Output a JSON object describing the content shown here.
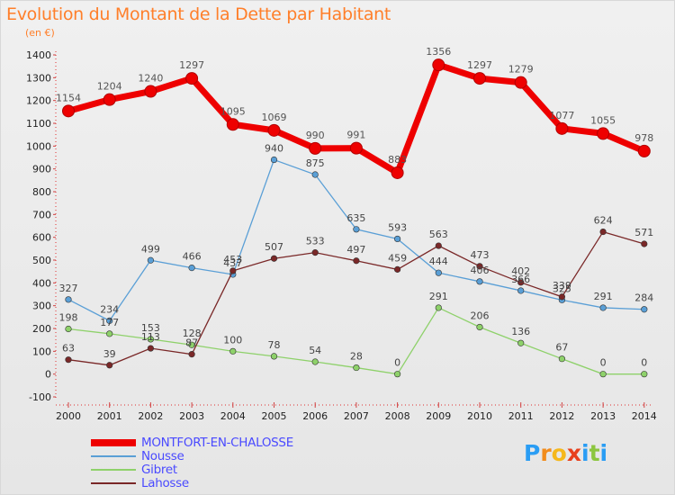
{
  "header": {
    "title": "Evolution du Montant de la Dette par Habitant",
    "subtitle": "(en €)"
  },
  "logo": {
    "letters": [
      "P",
      "r",
      "o",
      "x",
      "i",
      "t",
      "i"
    ],
    "colors": [
      "#2a9df4",
      "#f28c1c",
      "#f5b81c",
      "#e8401c",
      "#2a9df4",
      "#8cc63f",
      "#2a9df4"
    ]
  },
  "chart_data": {
    "type": "line",
    "title": "Evolution du Montant de la Dette par Habitant",
    "subtitle": "(en €)",
    "x": [
      "2000",
      "2001",
      "2002",
      "2003",
      "2004",
      "2005",
      "2006",
      "2007",
      "2008",
      "2009",
      "2010",
      "2011",
      "2012",
      "2013",
      "2014"
    ],
    "ylim": [
      -100,
      1400
    ],
    "yticks": [
      -100,
      0,
      100,
      200,
      300,
      400,
      500,
      600,
      700,
      800,
      900,
      1000,
      1100,
      1200,
      1300,
      1400
    ],
    "grid": false,
    "legend_position": "bottom-left",
    "series": [
      {
        "name": "MONTFORT-EN-CHALOSSE",
        "color": "#ee0000",
        "emphasis": true,
        "values": [
          1154,
          1204,
          1240,
          1297,
          1095,
          1069,
          990,
          991,
          883,
          1356,
          1297,
          1279,
          1077,
          1055,
          978
        ],
        "labels": [
          "1154",
          "1204",
          "1240",
          "1297",
          "1095",
          "1069",
          "990",
          "991",
          "883",
          "1356",
          "1297",
          "1279",
          "1077",
          "1055",
          "978"
        ]
      },
      {
        "name": "Nousse",
        "color": "#5a9fd6",
        "emphasis": false,
        "values": [
          327,
          234,
          499,
          466,
          437,
          940,
          875,
          635,
          593,
          444,
          406,
          366,
          325,
          291,
          284
        ],
        "labels": [
          "327",
          "234",
          "499",
          "466",
          "437",
          "940",
          "875",
          "635",
          "593",
          "444",
          "406",
          "366",
          "325",
          "291",
          "284"
        ]
      },
      {
        "name": "Gibret",
        "color": "#8ed16a",
        "emphasis": false,
        "values": [
          198,
          177,
          153,
          128,
          100,
          78,
          54,
          28,
          0,
          291,
          206,
          136,
          67,
          0,
          0
        ],
        "labels": [
          "198",
          "177",
          "153",
          "128",
          "100",
          "78",
          "54",
          "28",
          "0",
          "291",
          "206",
          "136",
          "67",
          "0",
          "0"
        ]
      },
      {
        "name": "Lahosse",
        "color": "#7a2828",
        "emphasis": false,
        "values": [
          63,
          39,
          113,
          87,
          453,
          507,
          533,
          497,
          459,
          563,
          473,
          402,
          339,
          624,
          571
        ],
        "labels": [
          "63",
          "39",
          "113",
          "87",
          "453",
          "507",
          "533",
          "497",
          "459",
          "563",
          "473",
          "402",
          "339",
          "624",
          "571"
        ]
      }
    ]
  }
}
